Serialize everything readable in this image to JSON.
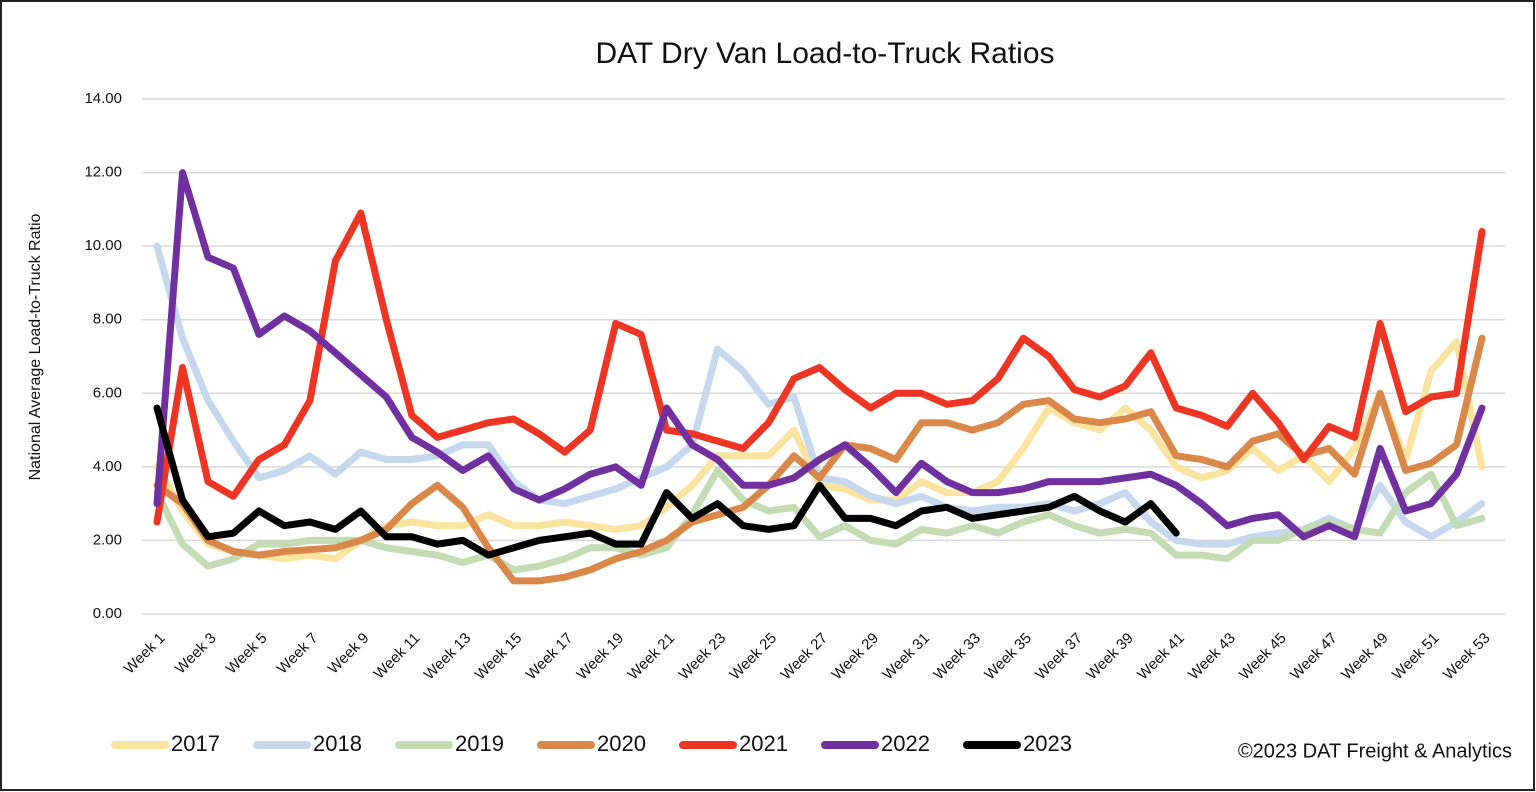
{
  "chart_data": {
    "type": "line",
    "title": "DAT Dry Van Load-to-Truck Ratios",
    "y_label": "National Average Load-to-Truck Ratio",
    "source": "©2023 DAT Freight & Analytics",
    "categories": [
      "Week 1",
      null,
      "Week 3",
      null,
      "Week 5",
      null,
      "Week 7",
      null,
      "Week 9",
      null,
      "Week 11",
      null,
      "Week 13",
      null,
      "Week 15",
      null,
      "Week 17",
      null,
      "Week 19",
      null,
      "Week 21",
      null,
      "Week 23",
      null,
      "Week 25",
      null,
      "Week 27",
      null,
      "Week 29",
      null,
      "Week 31",
      null,
      "Week 33",
      null,
      "Week 35",
      null,
      "Week 37",
      null,
      "Week 39",
      null,
      "Week 41",
      null,
      "Week 43",
      null,
      "Week 45",
      null,
      "Week 47",
      null,
      "Week 49",
      null,
      "Week 51",
      null,
      "Week 53"
    ],
    "ylim": [
      0,
      14
    ],
    "yticks": [
      {
        "value": 0,
        "label": "0.00"
      },
      {
        "value": 2,
        "label": "2.00"
      },
      {
        "value": 4,
        "label": "4.00"
      },
      {
        "value": 6,
        "label": "6.00"
      },
      {
        "value": 8,
        "label": "8.00"
      },
      {
        "value": 10,
        "label": "10.00"
      },
      {
        "value": 12,
        "label": "12.00"
      },
      {
        "value": 14,
        "label": "14.00"
      }
    ],
    "grid": true,
    "legend": "bottom",
    "series": [
      {
        "name": "2017",
        "color": "#fbe3a0",
        "values": [
          4.0,
          2.8,
          1.9,
          1.7,
          1.6,
          1.5,
          1.6,
          1.5,
          2.0,
          2.4,
          2.5,
          2.4,
          2.4,
          2.7,
          2.4,
          2.4,
          2.5,
          2.4,
          2.3,
          2.4,
          2.9,
          3.5,
          4.3,
          4.3,
          4.3,
          5.0,
          3.5,
          3.4,
          3.1,
          3.1,
          3.6,
          3.3,
          3.3,
          3.6,
          4.5,
          5.6,
          5.2,
          5.0,
          5.6,
          5.0,
          4.0,
          3.7,
          3.9,
          4.5,
          3.9,
          4.3,
          3.6,
          4.5,
          6.0,
          4.2,
          6.6,
          7.4,
          4.0
        ]
      },
      {
        "name": "2018",
        "color": "#c5d8ee",
        "values": [
          10.0,
          7.5,
          5.8,
          4.7,
          3.7,
          3.9,
          4.3,
          3.8,
          4.4,
          4.2,
          4.2,
          4.3,
          4.6,
          4.6,
          3.6,
          3.1,
          3.0,
          3.2,
          3.4,
          3.7,
          4.0,
          4.6,
          7.2,
          6.6,
          5.7,
          5.9,
          3.7,
          3.6,
          3.2,
          3.0,
          3.2,
          2.9,
          2.8,
          2.9,
          2.9,
          3.0,
          2.8,
          3.0,
          3.3,
          2.5,
          2.0,
          1.9,
          1.9,
          2.1,
          2.2,
          2.3,
          2.6,
          2.3,
          3.5,
          2.5,
          2.1,
          2.5,
          3.0
        ]
      },
      {
        "name": "2019",
        "color": "#c4dcb4",
        "values": [
          3.3,
          1.9,
          1.3,
          1.5,
          1.9,
          1.9,
          2.0,
          2.0,
          2.0,
          1.8,
          1.7,
          1.6,
          1.4,
          1.6,
          1.2,
          1.3,
          1.5,
          1.8,
          1.8,
          1.6,
          1.8,
          2.7,
          3.9,
          3.1,
          2.8,
          2.9,
          2.1,
          2.4,
          2.0,
          1.9,
          2.3,
          2.2,
          2.4,
          2.2,
          2.5,
          2.7,
          2.4,
          2.2,
          2.3,
          2.2,
          1.6,
          1.6,
          1.5,
          2.0,
          2.0,
          2.3,
          2.5,
          2.3,
          2.2,
          3.3,
          3.8,
          2.4,
          2.6
        ]
      },
      {
        "name": "2020",
        "color": "#d9884a",
        "values": [
          3.5,
          3.0,
          2.0,
          1.7,
          1.6,
          1.7,
          1.75,
          1.8,
          2.0,
          2.3,
          3.0,
          3.5,
          2.9,
          1.8,
          0.9,
          0.9,
          1.0,
          1.2,
          1.5,
          1.7,
          2.0,
          2.5,
          2.7,
          2.9,
          3.5,
          4.3,
          3.7,
          4.6,
          4.5,
          4.2,
          5.2,
          5.2,
          5.0,
          5.2,
          5.7,
          5.8,
          5.3,
          5.2,
          5.3,
          5.5,
          4.3,
          4.2,
          4.0,
          4.7,
          4.9,
          4.3,
          4.5,
          3.8,
          6.0,
          3.9,
          4.1,
          4.6,
          7.5
        ]
      },
      {
        "name": "2021",
        "color": "#ee3524",
        "values": [
          2.5,
          6.7,
          3.6,
          3.2,
          4.2,
          4.6,
          5.8,
          9.6,
          10.9,
          8.0,
          5.4,
          4.8,
          5.0,
          5.2,
          5.3,
          4.9,
          4.4,
          5.0,
          7.9,
          7.6,
          5.0,
          4.9,
          4.7,
          4.5,
          5.2,
          6.4,
          6.7,
          6.1,
          5.6,
          6.0,
          6.0,
          5.7,
          5.8,
          6.4,
          7.5,
          7.0,
          6.1,
          5.9,
          6.2,
          7.1,
          5.6,
          5.4,
          5.1,
          6.0,
          5.2,
          4.2,
          5.1,
          4.8,
          7.9,
          5.5,
          5.9,
          6.0,
          10.4
        ]
      },
      {
        "name": "2022",
        "color": "#7030a0",
        "values": [
          3.0,
          12.0,
          9.7,
          9.4,
          7.6,
          8.1,
          7.7,
          7.1,
          6.5,
          5.9,
          4.8,
          4.4,
          3.9,
          4.3,
          3.4,
          3.1,
          3.4,
          3.8,
          4.0,
          3.5,
          5.6,
          4.6,
          4.2,
          3.5,
          3.5,
          3.7,
          4.2,
          4.6,
          4.0,
          3.3,
          4.1,
          3.6,
          3.3,
          3.3,
          3.4,
          3.6,
          3.6,
          3.6,
          3.7,
          3.8,
          3.5,
          3.0,
          2.4,
          2.6,
          2.7,
          2.1,
          2.4,
          2.1,
          4.5,
          2.8,
          3.0,
          3.8,
          5.6
        ]
      },
      {
        "name": "2023",
        "color": "#000000",
        "values": [
          5.6,
          3.1,
          2.1,
          2.2,
          2.8,
          2.4,
          2.5,
          2.3,
          2.8,
          2.1,
          2.1,
          1.9,
          2.0,
          1.6,
          1.8,
          2.0,
          2.1,
          2.2,
          1.9,
          1.9,
          3.3,
          2.6,
          3.0,
          2.4,
          2.3,
          2.4,
          3.5,
          2.6,
          2.6,
          2.4,
          2.8,
          2.9,
          2.6,
          2.7,
          2.8,
          2.9,
          3.2,
          2.8,
          2.5,
          3.0,
          2.2,
          null,
          null,
          null,
          null,
          null,
          null,
          null,
          null,
          null,
          null,
          null,
          null
        ]
      }
    ]
  }
}
